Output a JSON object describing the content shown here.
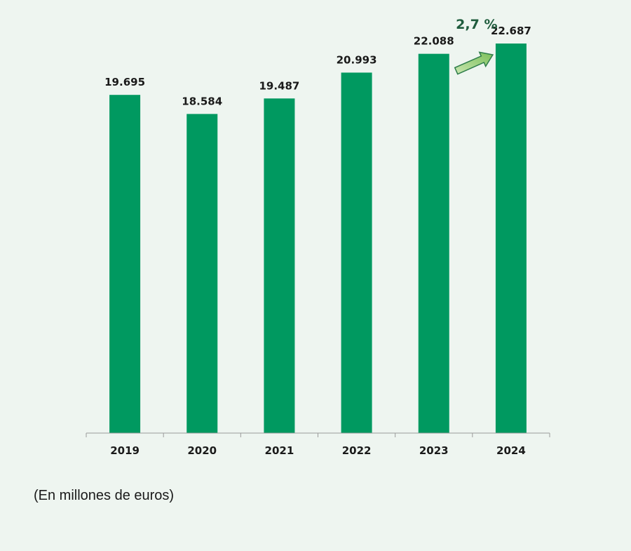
{
  "chart_data": {
    "type": "bar",
    "categories": [
      "2019",
      "2020",
      "2021",
      "2022",
      "2023",
      "2024"
    ],
    "values": [
      19695,
      18584,
      19487,
      20993,
      22088,
      22687
    ],
    "value_labels": [
      "19.695",
      "18.584",
      "19.487",
      "20.993",
      "22.088",
      "22.687"
    ],
    "ylim": [
      0,
      22687
    ],
    "grid": false,
    "bar_color": "#009960",
    "annotation": {
      "text": "2,7 %",
      "from_category": "2023",
      "to_category": "2024",
      "arrow_color": "#8fc96e",
      "text_color": "#1f5c3d"
    }
  },
  "units_note": "(En millones de euros)"
}
